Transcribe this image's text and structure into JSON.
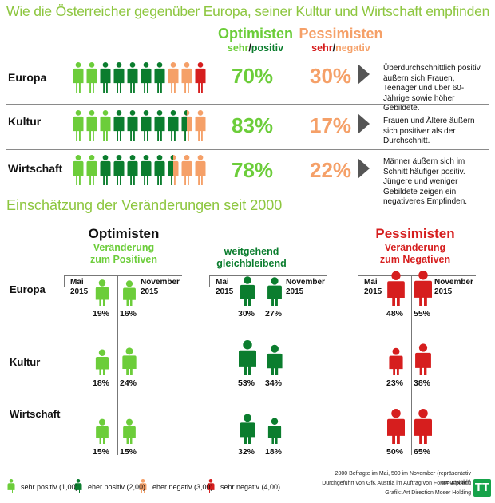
{
  "title": "Wie die Österreicher gegenüber Europa, seiner Kultur und Wirtschaft empfinden",
  "header": {
    "optimists": "Optimisten",
    "optimists_sub_a": "sehr",
    "optimists_sub_b": "positiv",
    "pessimists": "Pessimisten",
    "pessimists_sub_a": "sehr",
    "pessimists_sub_b": "negativ",
    "slash": "/"
  },
  "colors": {
    "sehr_positiv": "#6ccd3a",
    "eher_positiv": "#0b7d2e",
    "eher_negativ": "#f5a068",
    "sehr_negativ": "#d61e1e",
    "title_green": "#8dc63f"
  },
  "rows": [
    {
      "label": "Europa",
      "optimists_pct": "70%",
      "pessimists_pct": "30%",
      "note": "Überdurchschnittlich positiv äußern sich Frauen, Teenager und über 60-Jährige sowie höher Gebildete."
    },
    {
      "label": "Kultur",
      "optimists_pct": "83%",
      "pessimists_pct": "17%",
      "note": "Frauen und Ältere äußern sich positiver als der Durchschnitt."
    },
    {
      "label": "Wirtschaft",
      "optimists_pct": "78%",
      "pessimists_pct": "22%",
      "note": "Männer äußern sich im Schnitt häufiger positiv. Jüngere und weniger Gebildete zeigen ein negativeres Empfinden."
    }
  ],
  "section2_title": "Einschätzung der Veränderungen seit 2000",
  "change_columns": [
    {
      "title": "Optimisten",
      "subtitle_1": "Veränderung",
      "subtitle_2": "zum Positiven",
      "color": "#6ccd3a",
      "subtitle_color": "#6ccd3a"
    },
    {
      "title": "",
      "subtitle_1": "weitgehend",
      "subtitle_2": "gleichbleibend",
      "color": "#0b7d2e",
      "subtitle_color": "#0b7d2e"
    },
    {
      "title": "Pessimisten",
      "subtitle_1": "Veränderung",
      "subtitle_2": "zum Negativen",
      "color": "#d61e1e",
      "subtitle_color": "#d61e1e"
    }
  ],
  "period_labels": {
    "mai_1": "Mai",
    "mai_2": "2015",
    "nov_1": "November",
    "nov_2": "2015"
  },
  "change_rows": [
    "Europa",
    "Kultur",
    "Wirtschaft"
  ],
  "chart_data": [
    {
      "type": "bar",
      "title": "Wie die Österreicher gegenüber Europa, seiner Kultur und Wirtschaft empfinden",
      "categories": [
        "Europa",
        "Kultur",
        "Wirtschaft"
      ],
      "series": [
        {
          "name": "Optimisten",
          "values": [
            70,
            83,
            78
          ]
        },
        {
          "name": "Pessimisten",
          "values": [
            30,
            17,
            22
          ]
        }
      ],
      "pictogram_counts": {
        "Europa": {
          "sehr_positiv": 2,
          "eher_positiv": 5,
          "eher_negativ": 2,
          "sehr_negativ": 1
        },
        "Kultur": {
          "sehr_positiv": 3,
          "eher_positiv": 5,
          "mixed_eher_positiv_eher_negativ": 1,
          "eher_negativ": 1
        },
        "Wirtschaft": {
          "sehr_positiv": 2,
          "eher_positiv": 5,
          "mixed_eher_positiv_eher_negativ": 1,
          "eher_negativ": 2
        }
      },
      "ylim": [
        0,
        100
      ]
    },
    {
      "type": "bar",
      "title": "Einschätzung der Veränderungen seit 2000",
      "categories": [
        "Europa",
        "Kultur",
        "Wirtschaft"
      ],
      "series": [
        {
          "name": "Veränderung zum Positiven",
          "mai": [
            19,
            18,
            15
          ],
          "november": [
            16,
            24,
            15
          ]
        },
        {
          "name": "weitgehend gleichbleibend",
          "mai": [
            30,
            53,
            32
          ],
          "november": [
            27,
            34,
            18
          ]
        },
        {
          "name": "Veränderung zum Negativen",
          "mai": [
            48,
            23,
            50
          ],
          "november": [
            55,
            38,
            65
          ]
        }
      ],
      "x": [
        "Mai 2015",
        "November 2015"
      ],
      "ylim": [
        0,
        100
      ]
    }
  ],
  "legend": [
    {
      "label": "sehr positiv (1,00)",
      "color": "#6ccd3a"
    },
    {
      "label": "eher positiv (2,00)",
      "color": "#0b7d2e"
    },
    {
      "label": "eher negativ (3,00)",
      "color": "#f5a068"
    },
    {
      "label": "sehr negativ (4,00)",
      "color": "#d61e1e"
    }
  ],
  "footer": {
    "line1": "2000 Befragte im Mai, 500 im November (repräsentativ ausgewählt)",
    "line2": "Durchgeführt von GfK Austria im Auftrag von Forum Alpbach",
    "line3": "Grafik: Art Direction Moser Holding"
  },
  "logo": "TT"
}
